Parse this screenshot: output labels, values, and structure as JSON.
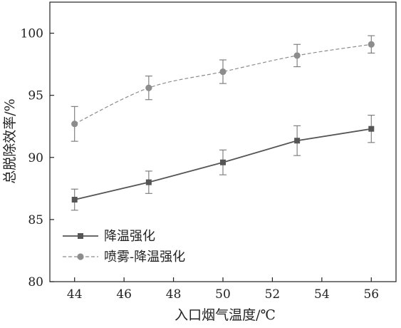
{
  "chart_data": {
    "type": "line",
    "xlabel": "入口烟气温度/℃",
    "ylabel": "总脱除效率/%",
    "xlim": [
      43,
      57
    ],
    "ylim": [
      80,
      102.5
    ],
    "xticks": [
      "44",
      "46",
      "48",
      "50",
      "52",
      "54",
      "56"
    ],
    "yticks": [
      "80",
      "85",
      "90",
      "95",
      "100"
    ],
    "grid": false,
    "legend": "bottom-left",
    "x": [
      44,
      47,
      50,
      53,
      56
    ],
    "series": [
      {
        "name": "降温强化",
        "values": [
          86.6,
          88.0,
          89.6,
          91.35,
          92.3
        ],
        "error": [
          0.85,
          0.9,
          1.0,
          1.2,
          1.1
        ],
        "marker": "square",
        "line": "solid",
        "color": "#555555"
      },
      {
        "name": "喷雾-降温强化",
        "values": [
          92.7,
          95.6,
          96.9,
          98.2,
          99.1
        ],
        "error": [
          1.4,
          0.95,
          0.95,
          0.9,
          0.7
        ],
        "marker": "circle",
        "line": "dashed",
        "color": "#8c8c8c"
      }
    ]
  }
}
